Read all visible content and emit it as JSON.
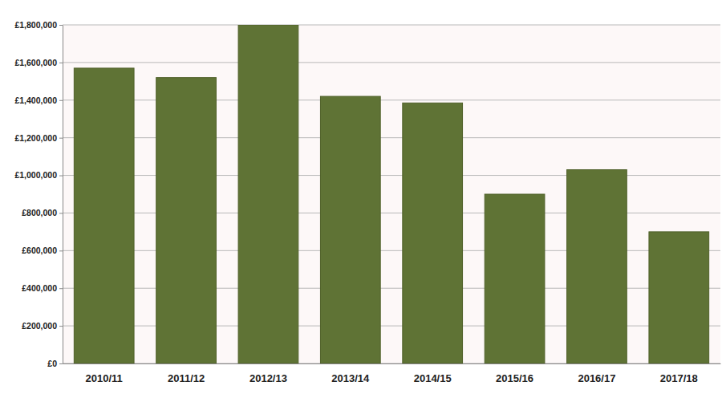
{
  "chart_data": {
    "type": "bar",
    "categories": [
      "2010/11",
      "2011/12",
      "2012/13",
      "2013/14",
      "2014/15",
      "2015/16",
      "2016/17",
      "2017/18"
    ],
    "values": [
      1570000,
      1520000,
      1800000,
      1420000,
      1385000,
      900000,
      1030000,
      700000
    ],
    "color": "#5f7335",
    "ylim": [
      0,
      1800000
    ],
    "yticks": [
      {
        "value": 0,
        "label": "£0"
      },
      {
        "value": 200000,
        "label": "£200,000"
      },
      {
        "value": 400000,
        "label": "£400,000"
      },
      {
        "value": 600000,
        "label": "£600,000"
      },
      {
        "value": 800000,
        "label": "£800,000"
      },
      {
        "value": 1000000,
        "label": "£1,000,000"
      },
      {
        "value": 1200000,
        "label": "£1,200,000"
      },
      {
        "value": 1400000,
        "label": "£1,400,000"
      },
      {
        "value": 1600000,
        "label": "£1,600,000"
      },
      {
        "value": 1800000,
        "label": "£1,800,000"
      }
    ],
    "grid": true
  }
}
